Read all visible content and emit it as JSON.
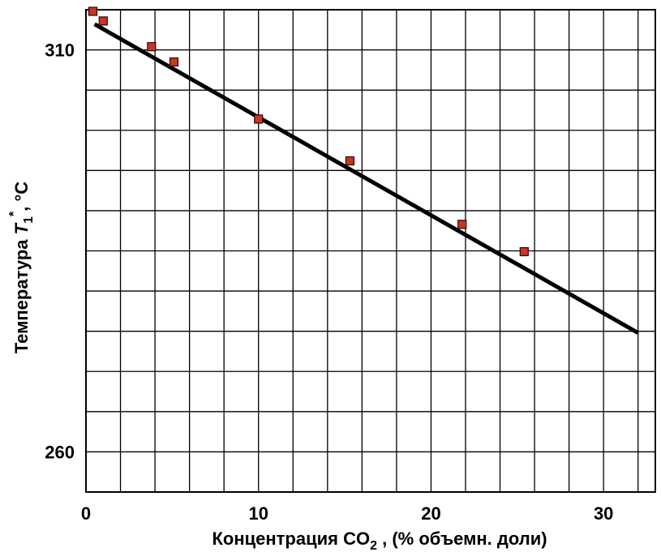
{
  "chart_data": {
    "type": "scatter",
    "xlabel_main": "Концентрация CO",
    "xlabel_sub": "2",
    "xlabel_tail": " , (% объемн. доли)",
    "ylabel_main": "Температура ",
    "ylabel_var": "T",
    "ylabel_sub": "1",
    "ylabel_sup": "*",
    "ylabel_tail": ", °C",
    "xlim": [
      0,
      33
    ],
    "ylim": [
      255,
      315
    ],
    "grid": true,
    "x_ticks": [
      0,
      10,
      20,
      30
    ],
    "x_tick_labels": [
      "0",
      "10",
      "20",
      "30"
    ],
    "y_ticks": [
      260,
      310
    ],
    "y_tick_labels": [
      "260",
      "310"
    ],
    "x_grid_step": 2,
    "y_grid_step": 5,
    "series": [
      {
        "marker_color": "#c0392b",
        "points": [
          {
            "x": 0.4,
            "y": 314.8
          },
          {
            "x": 1.0,
            "y": 313.6
          },
          {
            "x": 3.8,
            "y": 310.4
          },
          {
            "x": 5.1,
            "y": 308.5
          },
          {
            "x": 10.0,
            "y": 301.4
          },
          {
            "x": 15.3,
            "y": 296.2
          },
          {
            "x": 21.8,
            "y": 288.3
          },
          {
            "x": 25.4,
            "y": 284.9
          }
        ]
      }
    ],
    "fit_line": {
      "x": [
        0.5,
        32.0
      ],
      "y": [
        313.2,
        274.8
      ],
      "color": "#000000"
    }
  }
}
